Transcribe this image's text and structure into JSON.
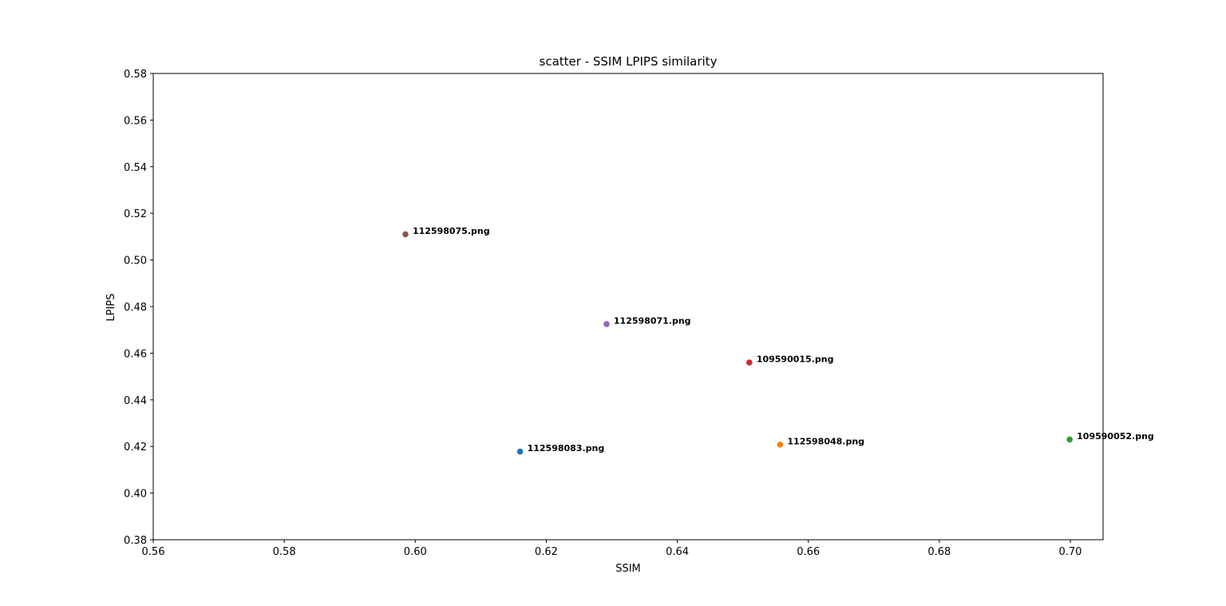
{
  "chart_data": {
    "type": "scatter",
    "title": "scatter - SSIM LPIPS similarity",
    "xlabel": "SSIM",
    "ylabel": "LPIPS",
    "xlim": [
      0.56,
      0.705
    ],
    "ylim": [
      0.38,
      0.58
    ],
    "xticks": [
      "0.56",
      "0.58",
      "0.60",
      "0.62",
      "0.64",
      "0.66",
      "0.68",
      "0.70"
    ],
    "yticks": [
      "0.38",
      "0.40",
      "0.42",
      "0.44",
      "0.46",
      "0.48",
      "0.50",
      "0.52",
      "0.54",
      "0.56",
      "0.58"
    ],
    "grid": false,
    "points": [
      {
        "label": "112598083.png",
        "x": 0.616,
        "y": 0.4178,
        "color": "#1f77b4"
      },
      {
        "label": "112598048.png",
        "x": 0.6557,
        "y": 0.4208,
        "color": "#ff7f0e"
      },
      {
        "label": "109590052.png",
        "x": 0.6999,
        "y": 0.423,
        "color": "#2ca02c"
      },
      {
        "label": "109590015.png",
        "x": 0.651,
        "y": 0.456,
        "color": "#d62728"
      },
      {
        "label": "112598071.png",
        "x": 0.6292,
        "y": 0.4725,
        "color": "#9467bd"
      },
      {
        "label": "112598075.png",
        "x": 0.5985,
        "y": 0.511,
        "color": "#8c564b"
      }
    ]
  }
}
